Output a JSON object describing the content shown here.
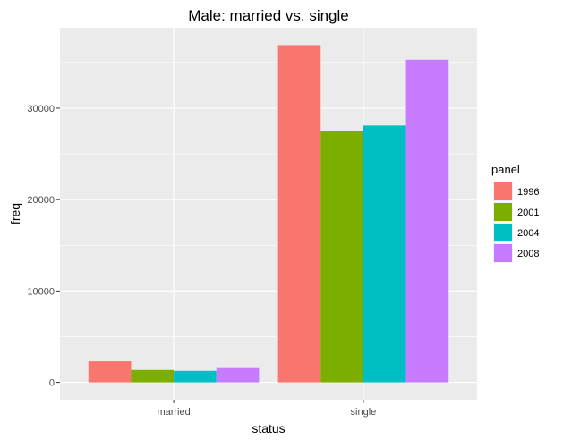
{
  "chart_data": {
    "type": "bar",
    "title": "Male: married vs. single",
    "xlabel": "status",
    "ylabel": "freq",
    "categories": [
      "married",
      "single"
    ],
    "series": [
      {
        "name": "1996",
        "color": "#F8766D",
        "values": [
          2300,
          36900
        ]
      },
      {
        "name": "2001",
        "color": "#7CAE00",
        "values": [
          1350,
          27500
        ]
      },
      {
        "name": "2004",
        "color": "#00BFC4",
        "values": [
          1250,
          28100
        ]
      },
      {
        "name": "2008",
        "color": "#C77CFF",
        "values": [
          1650,
          35300
        ]
      }
    ],
    "ylim": [
      -1900,
      38800
    ],
    "yticks": [
      0,
      10000,
      20000,
      30000
    ],
    "ytick_labels": [
      "0",
      "10000",
      "20000",
      "30000"
    ],
    "legend": {
      "title": "panel",
      "position": "right"
    },
    "grid": true,
    "panel_background": "#EBEBEB",
    "grid_color": "#FFFFFF"
  }
}
